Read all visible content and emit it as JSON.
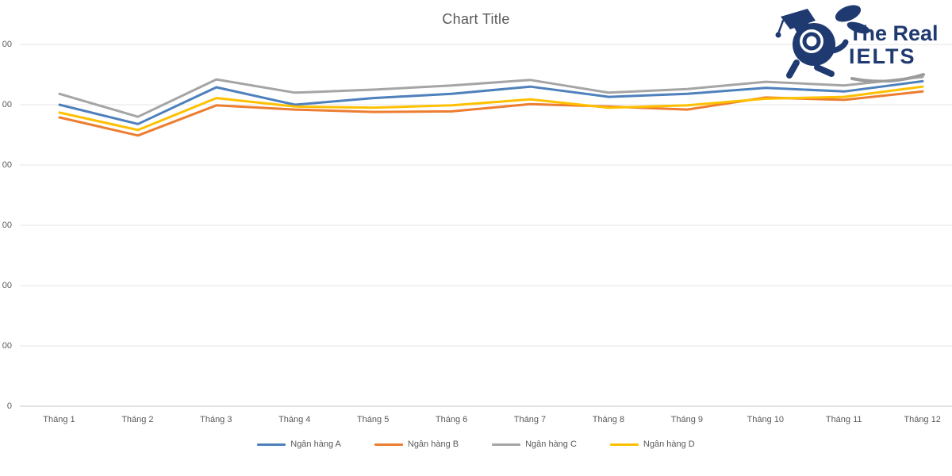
{
  "page": {
    "background": "#ffffff"
  },
  "logo": {
    "line1": "The Real",
    "line2": "IELTS",
    "color": "#1f3a70",
    "mascot": "rabbit-graduation-cap-mascot"
  },
  "chart_data": {
    "type": "line",
    "title": "Chart Title",
    "categories": [
      "Tháng 1",
      "Tháng 2",
      "Tháng 3",
      "Tháng 4",
      "Tháng 5",
      "Tháng 6",
      "Tháng 7",
      "Tháng 8",
      "Tháng 9",
      "Tháng 10",
      "Tháng 11",
      "Tháng 12"
    ],
    "y_tick_labels": [
      "00",
      "00",
      "00",
      "00",
      "00",
      "00",
      "0"
    ],
    "ylim": [
      0,
      600
    ],
    "grid": true,
    "legend_position": "bottom",
    "gridline_color": "#e4e4e4",
    "axis_line_color": "#c9c9c9",
    "series": [
      {
        "name": "Ngân hàng A",
        "color": "#4e80bc",
        "values": [
          500,
          468,
          529,
          500,
          511,
          518,
          530,
          513,
          518,
          528,
          522,
          539
        ]
      },
      {
        "name": "Ngân hàng B",
        "color": "#ed7d31",
        "values": [
          479,
          449,
          499,
          492,
          488,
          489,
          501,
          497,
          492,
          512,
          508,
          522
        ]
      },
      {
        "name": "Ngân hàng C",
        "color": "#a5a5a5",
        "values": [
          518,
          480,
          542,
          520,
          525,
          532,
          541,
          520,
          526,
          538,
          532,
          546
        ]
      },
      {
        "name": "Ngân hàng D",
        "color": "#ffc000",
        "values": [
          487,
          458,
          511,
          497,
          495,
          499,
          509,
          495,
          499,
          510,
          513,
          530
        ]
      }
    ]
  }
}
